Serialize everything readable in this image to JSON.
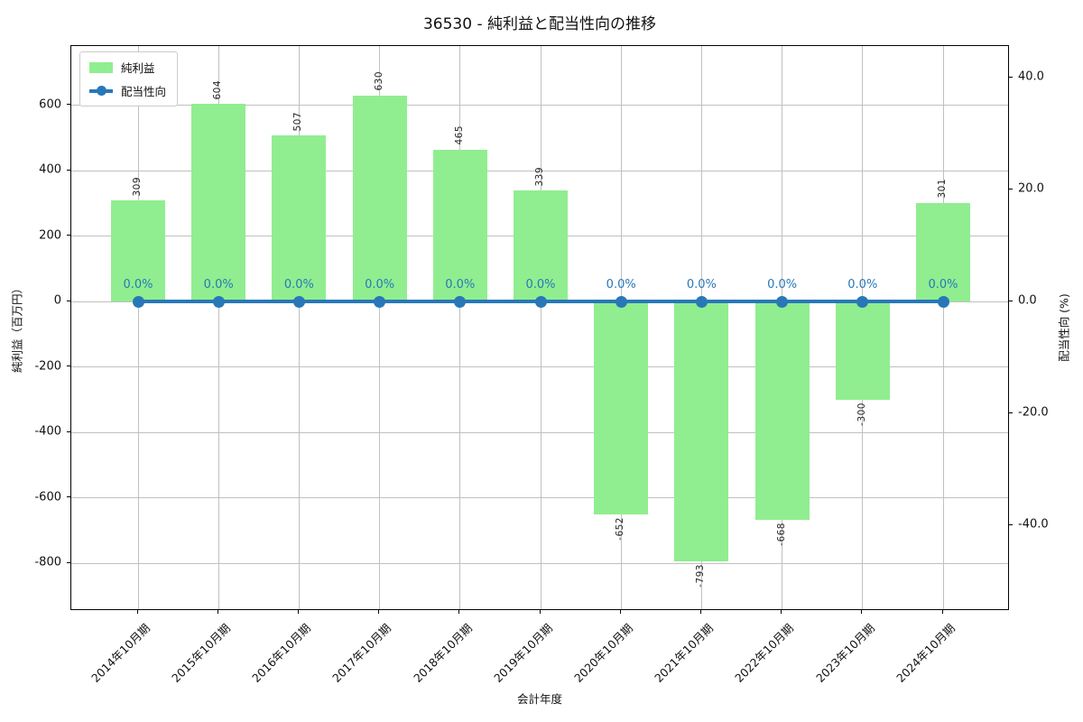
{
  "chart_data": {
    "type": "bar",
    "title": "36530 - 純利益と配当性向の推移",
    "xlabel": "会計年度",
    "ylabel_left": "純利益（百万円）",
    "ylabel_right": "配当性向 (%)",
    "categories": [
      "2014年10月期",
      "2015年10月期",
      "2016年10月期",
      "2017年10月期",
      "2018年10月期",
      "2019年10月期",
      "2020年10月期",
      "2021年10月期",
      "2022年10月期",
      "2023年10月期",
      "2024年10月期"
    ],
    "series": [
      {
        "name": "純利益",
        "type": "bar",
        "axis": "left",
        "color": "#90ee90",
        "values": [
          309,
          604,
          507,
          630,
          465,
          339,
          -652,
          -793,
          -668,
          -300,
          301
        ],
        "value_labels": [
          "309",
          "604",
          "507",
          "630",
          "465",
          "339",
          "-652",
          "-793",
          "-668",
          "-300",
          "301"
        ]
      },
      {
        "name": "配当性向",
        "type": "line",
        "axis": "right",
        "color": "#2878b8",
        "values": [
          0,
          0,
          0,
          0,
          0,
          0,
          0,
          0,
          0,
          0,
          0
        ],
        "point_labels": [
          "0.0%",
          "0.0%",
          "0.0%",
          "0.0%",
          "0.0%",
          "0.0%",
          "0.0%",
          "0.0%",
          "0.0%",
          "0.0%",
          "0.0%"
        ]
      }
    ],
    "yticks_left": [
      600,
      400,
      200,
      0,
      -200,
      -400,
      -600,
      -800
    ],
    "ylim_left": [
      -946,
      781
    ],
    "yticks_right": [
      40,
      20,
      0,
      -20,
      -40
    ],
    "ytick_labels_right": [
      "40.0",
      "20.0",
      "0.0",
      "-20.0",
      "-40.0"
    ],
    "ylim_right": [
      -55.3,
      45.7
    ],
    "grid": true,
    "legend_position": "upper left",
    "colors": {
      "bar": "#90ee90",
      "line": "#2878b8",
      "grid": "#c0c0c0",
      "spine": "#000000"
    }
  }
}
